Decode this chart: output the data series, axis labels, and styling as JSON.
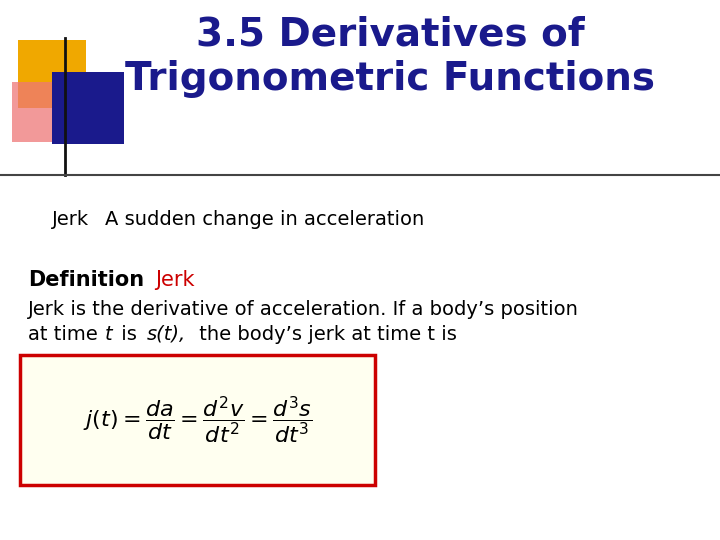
{
  "title_line1": "3.5 Derivatives of",
  "title_line2": "Trigonometric Functions",
  "title_color": "#1a1a8c",
  "title_fontsize": 28,
  "background_color": "#ffffff",
  "separator_line_color": "#444444",
  "jerk_label": "Jerk",
  "jerk_desc": "A sudden change in acceleration",
  "jerk_fontsize": 14,
  "def_bold": "Definition",
  "def_bold_color": "#000000",
  "def_red": "Jerk",
  "def_red_color": "#cc0000",
  "def_fontsize": 15,
  "body_fontsize": 14,
  "formula_box_facecolor": "#fffff0",
  "formula_box_edgecolor": "#cc0000",
  "formula_fontsize": 16,
  "deco_gold": "#f0a800",
  "deco_blue": "#1a1a8c",
  "deco_red": "#ee7777",
  "deco_blue_line": "#1a1a8c"
}
